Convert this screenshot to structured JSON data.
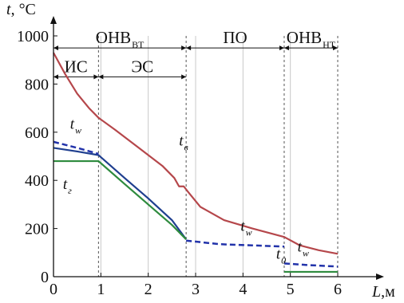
{
  "chart_data": {
    "type": "line",
    "xlabel": "L",
    "xunit": ",м",
    "ylabel": "t",
    "yunit": ", °С",
    "xlim": [
      0,
      6
    ],
    "ylim": [
      0,
      1000
    ],
    "x_ticks": [
      "0",
      "1",
      "2",
      "3",
      "4",
      "5",
      "6"
    ],
    "y_ticks": [
      "0",
      "200",
      "400",
      "600",
      "800",
      "1000"
    ],
    "grid": "vertical",
    "zones": [
      {
        "label": "ОНВ",
        "sub": "ВТ",
        "x_start": 0,
        "x_end": 2.8,
        "y": 950
      },
      {
        "label": "ИС",
        "sub": "",
        "x_start": 0,
        "x_end": 0.95,
        "y": 830
      },
      {
        "label": "ЭС",
        "sub": "",
        "x_start": 0.95,
        "x_end": 2.8,
        "y": 830
      },
      {
        "label": "ПО",
        "sub": "",
        "x_start": 2.8,
        "x_end": 4.87,
        "y": 950
      },
      {
        "label": "ОНВ",
        "sub": "НТ",
        "x_start": 4.87,
        "x_end": 6.0,
        "y": 950
      }
    ],
    "series": [
      {
        "label": "t",
        "sub": "в",
        "color": "#b5474b",
        "style": "solid",
        "points": [
          [
            0,
            930
          ],
          [
            0.25,
            840
          ],
          [
            0.5,
            760
          ],
          [
            0.75,
            700
          ],
          [
            0.95,
            660
          ],
          [
            1.3,
            610
          ],
          [
            1.8,
            535
          ],
          [
            2.3,
            460
          ],
          [
            2.55,
            410
          ],
          [
            2.65,
            375
          ],
          [
            2.75,
            375
          ],
          [
            2.85,
            350
          ],
          [
            3.1,
            290
          ],
          [
            3.6,
            235
          ],
          [
            4.2,
            200
          ],
          [
            4.87,
            165
          ],
          [
            5.2,
            130
          ],
          [
            5.6,
            110
          ],
          [
            6.0,
            95
          ]
        ]
      },
      {
        "label": "t",
        "sub": "w",
        "color": "#1f3f8f",
        "style": "solid",
        "points": [
          [
            0,
            535
          ],
          [
            0.5,
            520
          ],
          [
            0.95,
            505
          ],
          [
            1.5,
            410
          ],
          [
            2.0,
            325
          ],
          [
            2.5,
            235
          ],
          [
            2.8,
            155
          ]
        ]
      },
      {
        "label": "t",
        "sub": "w",
        "color": "#2233aa",
        "style": "dashed",
        "points": [
          [
            0,
            560
          ],
          [
            0.5,
            535
          ],
          [
            0.95,
            510
          ]
        ]
      },
      {
        "label": "t",
        "sub": "w",
        "color": "#2233aa",
        "style": "dashed",
        "points": [
          [
            2.8,
            150
          ],
          [
            3.5,
            135
          ],
          [
            4.2,
            130
          ],
          [
            4.87,
            125
          ]
        ]
      },
      {
        "label": "t",
        "sub": "w",
        "color": "#2233aa",
        "style": "dashed",
        "points": [
          [
            4.87,
            55
          ],
          [
            5.4,
            48
          ],
          [
            6.0,
            42
          ]
        ]
      },
      {
        "label": "t",
        "sub": "г",
        "color": "#2e8b3e",
        "style": "solid",
        "points": [
          [
            0,
            480
          ],
          [
            0.95,
            480
          ],
          [
            1.5,
            385
          ],
          [
            2.0,
            300
          ],
          [
            2.5,
            215
          ],
          [
            2.8,
            155
          ]
        ]
      },
      {
        "label": "t",
        "sub": "0",
        "color": "#2e8b3e",
        "style": "solid",
        "points": [
          [
            4.87,
            20
          ],
          [
            6.0,
            20
          ]
        ]
      }
    ],
    "curve_labels": [
      {
        "text": "t",
        "sub": "w",
        "x": 0.35,
        "y": 615
      },
      {
        "text": "t",
        "sub": "в",
        "x": 2.65,
        "y": 545
      },
      {
        "text": "t",
        "sub": "г",
        "x": 0.2,
        "y": 365
      },
      {
        "text": "t",
        "sub": "w",
        "x": 3.95,
        "y": 190
      },
      {
        "text": "t",
        "sub": "0",
        "x": 4.7,
        "y": 75
      },
      {
        "text": "t",
        "sub": "w",
        "x": 5.15,
        "y": 105
      }
    ]
  }
}
